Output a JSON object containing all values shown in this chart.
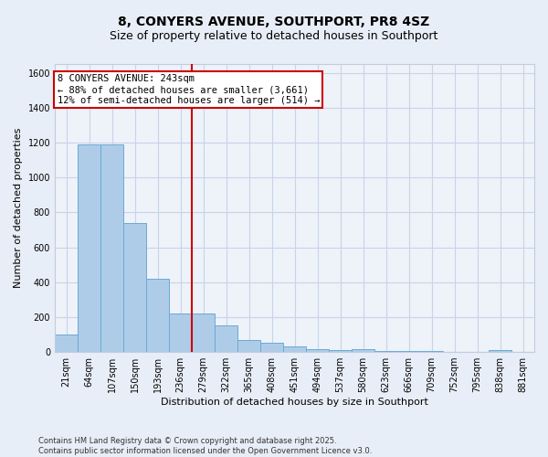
{
  "title": "8, CONYERS AVENUE, SOUTHPORT, PR8 4SZ",
  "subtitle": "Size of property relative to detached houses in Southport",
  "xlabel": "Distribution of detached houses by size in Southport",
  "ylabel": "Number of detached properties",
  "categories": [
    "21sqm",
    "64sqm",
    "107sqm",
    "150sqm",
    "193sqm",
    "236sqm",
    "279sqm",
    "322sqm",
    "365sqm",
    "408sqm",
    "451sqm",
    "494sqm",
    "537sqm",
    "580sqm",
    "623sqm",
    "666sqm",
    "709sqm",
    "752sqm",
    "795sqm",
    "838sqm",
    "881sqm"
  ],
  "values": [
    100,
    1190,
    1190,
    740,
    420,
    220,
    220,
    150,
    70,
    55,
    30,
    15,
    10,
    15,
    5,
    5,
    5,
    0,
    0,
    10,
    0
  ],
  "bar_color": "#aecce8",
  "bar_edge_color": "#6aaad4",
  "vline_x_index": 5,
  "vline_color": "#cc0000",
  "annotation_text_line1": "8 CONYERS AVENUE: 243sqm",
  "annotation_text_line2": "← 88% of detached houses are smaller (3,661)",
  "annotation_text_line3": "12% of semi-detached houses are larger (514) →",
  "annotation_box_color": "#ffffff",
  "annotation_box_edge": "#cc0000",
  "ylim": [
    0,
    1650
  ],
  "yticks": [
    0,
    200,
    400,
    600,
    800,
    1000,
    1200,
    1400,
    1600
  ],
  "footer": "Contains HM Land Registry data © Crown copyright and database right 2025.\nContains public sector information licensed under the Open Government Licence v3.0.",
  "bg_color": "#e8eef7",
  "plot_bg_color": "#eef2f9",
  "grid_color": "#c8d4e8",
  "title_fontsize": 10,
  "subtitle_fontsize": 9,
  "axis_label_fontsize": 8,
  "tick_fontsize": 7,
  "footer_fontsize": 6
}
